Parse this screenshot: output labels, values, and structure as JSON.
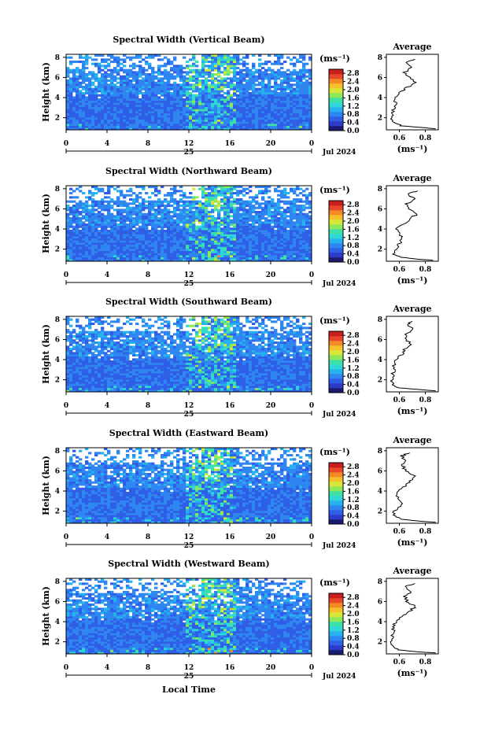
{
  "figure": {
    "x_axis_label": "Local Time",
    "date_label": "Jul 2024",
    "day_label": "25",
    "y_axis_label": "Height (km)",
    "colorbar_unit": "(ms⁻¹)",
    "average_title": "Average",
    "average_unit": "(ms⁻¹)"
  },
  "colors": {
    "colormap": [
      "#1a1a6e",
      "#2d3cc8",
      "#2f5fe6",
      "#2f86f0",
      "#27b2ef",
      "#2fd8d8",
      "#3fe0a8",
      "#8ee85a",
      "#d8e83a",
      "#f6c02c",
      "#f48a26",
      "#e8472a",
      "#c81e1e"
    ],
    "background": "#ffffff"
  },
  "chart_data": [
    {
      "type": "heatmap",
      "title": "Spectral Width (Vertical Beam)",
      "xlabel": "",
      "ylabel": "Height (km)",
      "x_ticks": [
        "0",
        "4",
        "8",
        "12",
        "16",
        "20",
        "0"
      ],
      "xlim": [
        0,
        24
      ],
      "y_ticks": [
        "2",
        "4",
        "6",
        "8"
      ],
      "ylim": [
        0.8,
        8.3
      ],
      "colorbar": {
        "ticks": [
          "0.0",
          "0.4",
          "0.8",
          "1.2",
          "1.6",
          "2.0",
          "2.4",
          "2.8"
        ],
        "range": [
          0,
          3.0
        ]
      },
      "average_profile": {
        "type": "line",
        "title": "Average",
        "xlabel": "(ms⁻¹)",
        "x_ticks": [
          "0.6",
          "0.8"
        ],
        "xlim": [
          0.5,
          0.9
        ],
        "ylim": [
          0.8,
          8.3
        ],
        "heights": [
          0.9,
          1.0,
          1.2,
          1.5,
          2.0,
          2.5,
          3.0,
          3.5,
          4.0,
          4.5,
          5.0,
          5.5,
          6.0,
          6.5,
          7.0,
          7.5,
          7.8
        ],
        "values": [
          0.88,
          0.8,
          0.62,
          0.56,
          0.54,
          0.55,
          0.56,
          0.57,
          0.57,
          0.6,
          0.66,
          0.72,
          0.68,
          0.64,
          0.7,
          0.64,
          0.72
        ]
      }
    },
    {
      "type": "heatmap",
      "title": "Spectral Width (Northward Beam)",
      "xlabel": "",
      "ylabel": "Height (km)",
      "x_ticks": [
        "0",
        "4",
        "8",
        "12",
        "16",
        "20",
        "0"
      ],
      "xlim": [
        0,
        24
      ],
      "y_ticks": [
        "2",
        "4",
        "6",
        "8"
      ],
      "ylim": [
        0.8,
        8.3
      ],
      "colorbar": {
        "ticks": [
          "0.0",
          "0.4",
          "0.8",
          "1.2",
          "1.6",
          "2.0",
          "2.4",
          "2.8"
        ],
        "range": [
          0,
          3.0
        ]
      },
      "average_profile": {
        "type": "line",
        "title": "Average",
        "xlabel": "(ms⁻¹)",
        "x_ticks": [
          "0.6",
          "0.8"
        ],
        "xlim": [
          0.5,
          0.9
        ],
        "ylim": [
          0.8,
          8.3
        ],
        "heights": [
          0.9,
          1.0,
          1.2,
          1.5,
          2.0,
          2.5,
          3.0,
          3.5,
          4.0,
          4.5,
          5.0,
          5.5,
          6.0,
          6.5,
          7.0,
          7.5,
          7.8
        ],
        "values": [
          0.86,
          0.74,
          0.62,
          0.56,
          0.58,
          0.6,
          0.62,
          0.6,
          0.57,
          0.63,
          0.68,
          0.74,
          0.68,
          0.66,
          0.72,
          0.66,
          0.74
        ]
      }
    },
    {
      "type": "heatmap",
      "title": "Spectral Width (Southward Beam)",
      "xlabel": "",
      "ylabel": "Height (km)",
      "x_ticks": [
        "0",
        "4",
        "8",
        "12",
        "16",
        "20",
        "0"
      ],
      "xlim": [
        0,
        24
      ],
      "y_ticks": [
        "2",
        "4",
        "6",
        "8"
      ],
      "ylim": [
        0.8,
        8.3
      ],
      "colorbar": {
        "ticks": [
          "0.0",
          "0.4",
          "0.8",
          "1.2",
          "1.6",
          "2.0",
          "2.4",
          "2.8"
        ],
        "range": [
          0,
          3.0
        ]
      },
      "average_profile": {
        "type": "line",
        "title": "Average",
        "xlabel": "(ms⁻¹)",
        "x_ticks": [
          "0.6",
          "0.8"
        ],
        "xlim": [
          0.5,
          0.9
        ],
        "ylim": [
          0.8,
          8.3
        ],
        "heights": [
          0.9,
          1.0,
          1.2,
          1.5,
          2.0,
          2.5,
          3.0,
          3.5,
          4.0,
          4.5,
          5.0,
          5.5,
          6.0,
          6.5,
          7.0,
          7.5,
          7.8
        ],
        "values": [
          0.88,
          0.78,
          0.6,
          0.55,
          0.54,
          0.55,
          0.56,
          0.56,
          0.58,
          0.62,
          0.64,
          0.68,
          0.66,
          0.64,
          0.7,
          0.66,
          0.7
        ]
      }
    },
    {
      "type": "heatmap",
      "title": "Spectral Width (Eastward Beam)",
      "xlabel": "",
      "ylabel": "Height (km)",
      "x_ticks": [
        "0",
        "4",
        "8",
        "12",
        "16",
        "20",
        "0"
      ],
      "xlim": [
        0,
        24
      ],
      "y_ticks": [
        "2",
        "4",
        "6",
        "8"
      ],
      "ylim": [
        0.8,
        8.3
      ],
      "colorbar": {
        "ticks": [
          "0.0",
          "0.4",
          "0.8",
          "1.2",
          "1.6",
          "2.0",
          "2.4",
          "2.8"
        ],
        "range": [
          0,
          3.0
        ]
      },
      "average_profile": {
        "type": "line",
        "title": "Average",
        "xlabel": "(ms⁻¹)",
        "x_ticks": [
          "0.6",
          "0.8"
        ],
        "xlim": [
          0.5,
          0.9
        ],
        "ylim": [
          0.8,
          8.3
        ],
        "heights": [
          0.9,
          1.0,
          1.2,
          1.5,
          2.0,
          2.5,
          3.0,
          3.5,
          4.0,
          4.5,
          5.0,
          5.5,
          6.0,
          6.5,
          7.0,
          7.5,
          7.8
        ],
        "values": [
          0.88,
          0.76,
          0.62,
          0.57,
          0.56,
          0.6,
          0.62,
          0.58,
          0.6,
          0.64,
          0.68,
          0.72,
          0.66,
          0.62,
          0.64,
          0.62,
          0.68
        ]
      }
    },
    {
      "type": "heatmap",
      "title": "Spectral Width (Westward Beam)",
      "xlabel": "Local Time",
      "ylabel": "Height (km)",
      "x_ticks": [
        "0",
        "4",
        "8",
        "12",
        "16",
        "20",
        "0"
      ],
      "xlim": [
        0,
        24
      ],
      "y_ticks": [
        "2",
        "4",
        "6",
        "8"
      ],
      "ylim": [
        0.8,
        8.3
      ],
      "colorbar": {
        "ticks": [
          "0.0",
          "0.4",
          "0.8",
          "1.2",
          "1.6",
          "2.0",
          "2.4",
          "2.8"
        ],
        "range": [
          0,
          3.0
        ]
      },
      "average_profile": {
        "type": "line",
        "title": "Average",
        "xlabel": "(ms⁻¹)",
        "x_ticks": [
          "0.6",
          "0.8"
        ],
        "xlim": [
          0.5,
          0.9
        ],
        "ylim": [
          0.8,
          8.3
        ],
        "heights": [
          0.9,
          1.0,
          1.2,
          1.5,
          2.0,
          2.5,
          3.0,
          3.5,
          4.0,
          4.5,
          5.0,
          5.5,
          6.0,
          6.5,
          7.0,
          7.5,
          7.8
        ],
        "values": [
          0.88,
          0.74,
          0.6,
          0.55,
          0.54,
          0.55,
          0.55,
          0.56,
          0.57,
          0.62,
          0.68,
          0.72,
          0.66,
          0.64,
          0.7,
          0.64,
          0.72
        ]
      }
    }
  ]
}
